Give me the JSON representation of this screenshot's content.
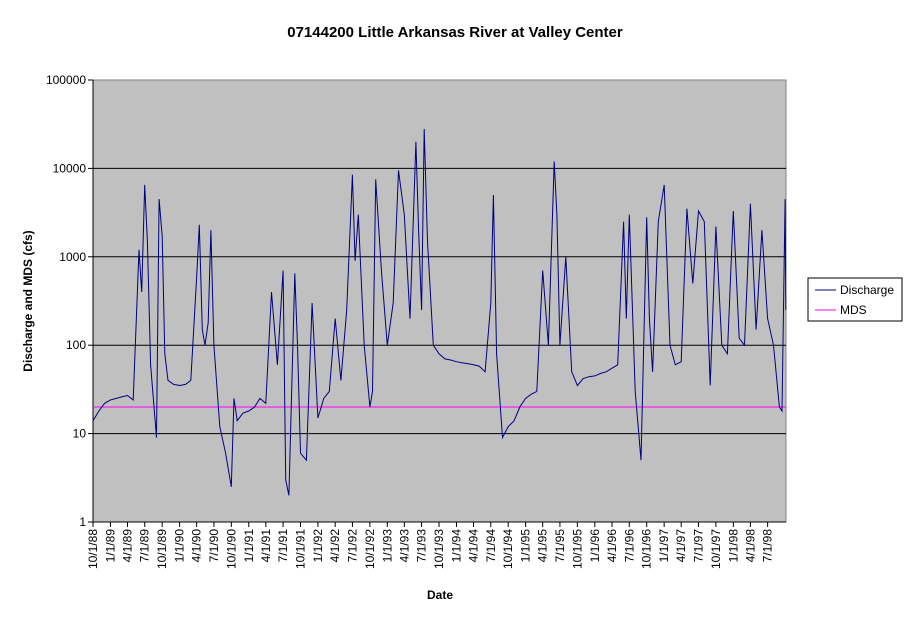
{
  "chart_data": {
    "type": "line",
    "title": "07144200 Little Arkansas River at Valley Center",
    "xlabel": "Date",
    "ylabel": "Discharge and MDS (cfs)",
    "y_scale": "log",
    "ylim": [
      1,
      100000
    ],
    "y_ticks": [
      "1",
      "10",
      "100",
      "1000",
      "10000",
      "100000"
    ],
    "x_tick_labels": [
      "10/1/88",
      "1/1/89",
      "4/1/89",
      "7/1/89",
      "10/1/89",
      "1/1/90",
      "4/1/90",
      "7/1/90",
      "10/1/90",
      "1/1/91",
      "4/1/91",
      "7/1/91",
      "10/1/91",
      "1/1/92",
      "4/1/92",
      "7/1/92",
      "10/1/92",
      "1/1/93",
      "4/1/93",
      "7/1/93",
      "10/1/93",
      "1/1/94",
      "4/1/94",
      "7/1/94",
      "10/1/94",
      "1/1/95",
      "4/1/95",
      "7/1/95",
      "10/1/95",
      "1/1/96",
      "4/1/96",
      "7/1/96",
      "10/1/96",
      "1/1/97",
      "4/1/97",
      "7/1/97",
      "10/1/97",
      "1/1/98",
      "4/1/98",
      "7/1/98"
    ],
    "grid": "horizontal major",
    "plot_background": "#c0c0c0",
    "legend_position": "right",
    "series": [
      {
        "name": "Discharge",
        "color": "#000080",
        "points": [
          [
            "10/1/88",
            14
          ],
          [
            "11/1/88",
            18
          ],
          [
            "12/1/88",
            22
          ],
          [
            "1/1/89",
            24
          ],
          [
            "2/1/89",
            25
          ],
          [
            "3/1/89",
            26
          ],
          [
            "4/1/89",
            27
          ],
          [
            "5/1/89",
            24
          ],
          [
            "6/1/89",
            1200
          ],
          [
            "6/15/89",
            400
          ],
          [
            "7/1/89",
            6500
          ],
          [
            "7/15/89",
            1500
          ],
          [
            "8/1/89",
            60
          ],
          [
            "9/1/89",
            9
          ],
          [
            "9/15/89",
            4500
          ],
          [
            "10/1/89",
            1700
          ],
          [
            "10/15/89",
            80
          ],
          [
            "11/1/89",
            40
          ],
          [
            "12/1/89",
            36
          ],
          [
            "1/1/90",
            35
          ],
          [
            "2/1/90",
            36
          ],
          [
            "3/1/90",
            40
          ],
          [
            "4/1/90",
            600
          ],
          [
            "4/15/90",
            2300
          ],
          [
            "5/1/90",
            150
          ],
          [
            "5/15/90",
            100
          ],
          [
            "6/1/90",
            180
          ],
          [
            "6/15/90",
            2000
          ],
          [
            "7/1/90",
            100
          ],
          [
            "8/1/90",
            12
          ],
          [
            "9/1/90",
            6
          ],
          [
            "10/1/90",
            2.5
          ],
          [
            "10/15/90",
            25
          ],
          [
            "11/1/90",
            14
          ],
          [
            "12/1/90",
            17
          ],
          [
            "1/1/91",
            18
          ],
          [
            "2/1/91",
            20
          ],
          [
            "3/1/91",
            25
          ],
          [
            "4/1/91",
            22
          ],
          [
            "5/1/91",
            400
          ],
          [
            "6/1/91",
            60
          ],
          [
            "7/1/91",
            700
          ],
          [
            "7/15/91",
            3
          ],
          [
            "8/1/91",
            2
          ],
          [
            "9/1/91",
            650
          ],
          [
            "9/15/91",
            100
          ],
          [
            "10/1/91",
            6
          ],
          [
            "11/1/91",
            5
          ],
          [
            "12/1/91",
            300
          ],
          [
            "1/1/92",
            15
          ],
          [
            "2/1/92",
            25
          ],
          [
            "3/1/92",
            30
          ],
          [
            "4/1/92",
            200
          ],
          [
            "5/1/92",
            40
          ],
          [
            "6/1/92",
            250
          ],
          [
            "7/1/92",
            8500
          ],
          [
            "7/15/92",
            900
          ],
          [
            "8/1/92",
            3000
          ],
          [
            "9/1/92",
            100
          ],
          [
            "10/1/92",
            20
          ],
          [
            "10/15/92",
            30
          ],
          [
            "11/1/92",
            7500
          ],
          [
            "12/1/92",
            700
          ],
          [
            "1/1/93",
            100
          ],
          [
            "2/1/93",
            300
          ],
          [
            "3/1/93",
            9500
          ],
          [
            "4/1/93",
            3000
          ],
          [
            "5/1/93",
            200
          ],
          [
            "6/1/93",
            20000
          ],
          [
            "6/15/93",
            2000
          ],
          [
            "7/1/93",
            250
          ],
          [
            "7/15/93",
            28000
          ],
          [
            "8/1/93",
            1500
          ],
          [
            "9/1/93",
            100
          ],
          [
            "10/1/93",
            80
          ],
          [
            "11/1/93",
            70
          ],
          [
            "12/1/93",
            68
          ],
          [
            "1/1/94",
            65
          ],
          [
            "2/1/94",
            63
          ],
          [
            "3/1/94",
            62
          ],
          [
            "4/1/94",
            60
          ],
          [
            "5/1/94",
            58
          ],
          [
            "6/1/94",
            50
          ],
          [
            "7/1/94",
            300
          ],
          [
            "7/15/94",
            5000
          ],
          [
            "8/1/94",
            80
          ],
          [
            "9/1/94",
            9
          ],
          [
            "10/1/94",
            12
          ],
          [
            "11/1/94",
            14
          ],
          [
            "12/1/94",
            20
          ],
          [
            "1/1/95",
            25
          ],
          [
            "2/1/95",
            28
          ],
          [
            "3/1/95",
            30
          ],
          [
            "4/1/95",
            700
          ],
          [
            "5/1/95",
            100
          ],
          [
            "6/1/95",
            12000
          ],
          [
            "6/15/95",
            3000
          ],
          [
            "7/1/95",
            100
          ],
          [
            "8/1/95",
            1000
          ],
          [
            "9/1/95",
            50
          ],
          [
            "10/1/95",
            35
          ],
          [
            "11/1/95",
            42
          ],
          [
            "12/1/95",
            44
          ],
          [
            "1/1/96",
            45
          ],
          [
            "2/1/96",
            48
          ],
          [
            "3/1/96",
            50
          ],
          [
            "4/1/96",
            55
          ],
          [
            "5/1/96",
            60
          ],
          [
            "6/1/96",
            2500
          ],
          [
            "6/15/96",
            200
          ],
          [
            "7/1/96",
            3000
          ],
          [
            "8/1/96",
            30
          ],
          [
            "9/1/96",
            5
          ],
          [
            "10/1/96",
            2800
          ],
          [
            "10/15/96",
            200
          ],
          [
            "11/1/96",
            50
          ],
          [
            "12/1/96",
            2500
          ],
          [
            "1/1/97",
            6500
          ],
          [
            "2/1/97",
            100
          ],
          [
            "3/1/97",
            60
          ],
          [
            "4/1/97",
            65
          ],
          [
            "5/1/97",
            3500
          ],
          [
            "6/1/97",
            500
          ],
          [
            "7/1/97",
            3300
          ],
          [
            "8/1/97",
            2500
          ],
          [
            "9/1/97",
            35
          ],
          [
            "10/1/97",
            2200
          ],
          [
            "11/1/97",
            100
          ],
          [
            "12/1/97",
            80
          ],
          [
            "1/1/98",
            3300
          ],
          [
            "2/1/98",
            120
          ],
          [
            "3/1/98",
            100
          ],
          [
            "4/1/98",
            4000
          ],
          [
            "5/1/98",
            150
          ],
          [
            "6/1/98",
            2000
          ],
          [
            "7/1/98",
            200
          ],
          [
            "8/1/98",
            100
          ],
          [
            "9/1/98",
            20
          ],
          [
            "9/15/98",
            18
          ],
          [
            "10/1/98",
            4500
          ],
          [
            "10/5/98",
            250
          ]
        ]
      },
      {
        "name": "MDS",
        "color": "#ff00ff",
        "value": 20
      }
    ]
  }
}
